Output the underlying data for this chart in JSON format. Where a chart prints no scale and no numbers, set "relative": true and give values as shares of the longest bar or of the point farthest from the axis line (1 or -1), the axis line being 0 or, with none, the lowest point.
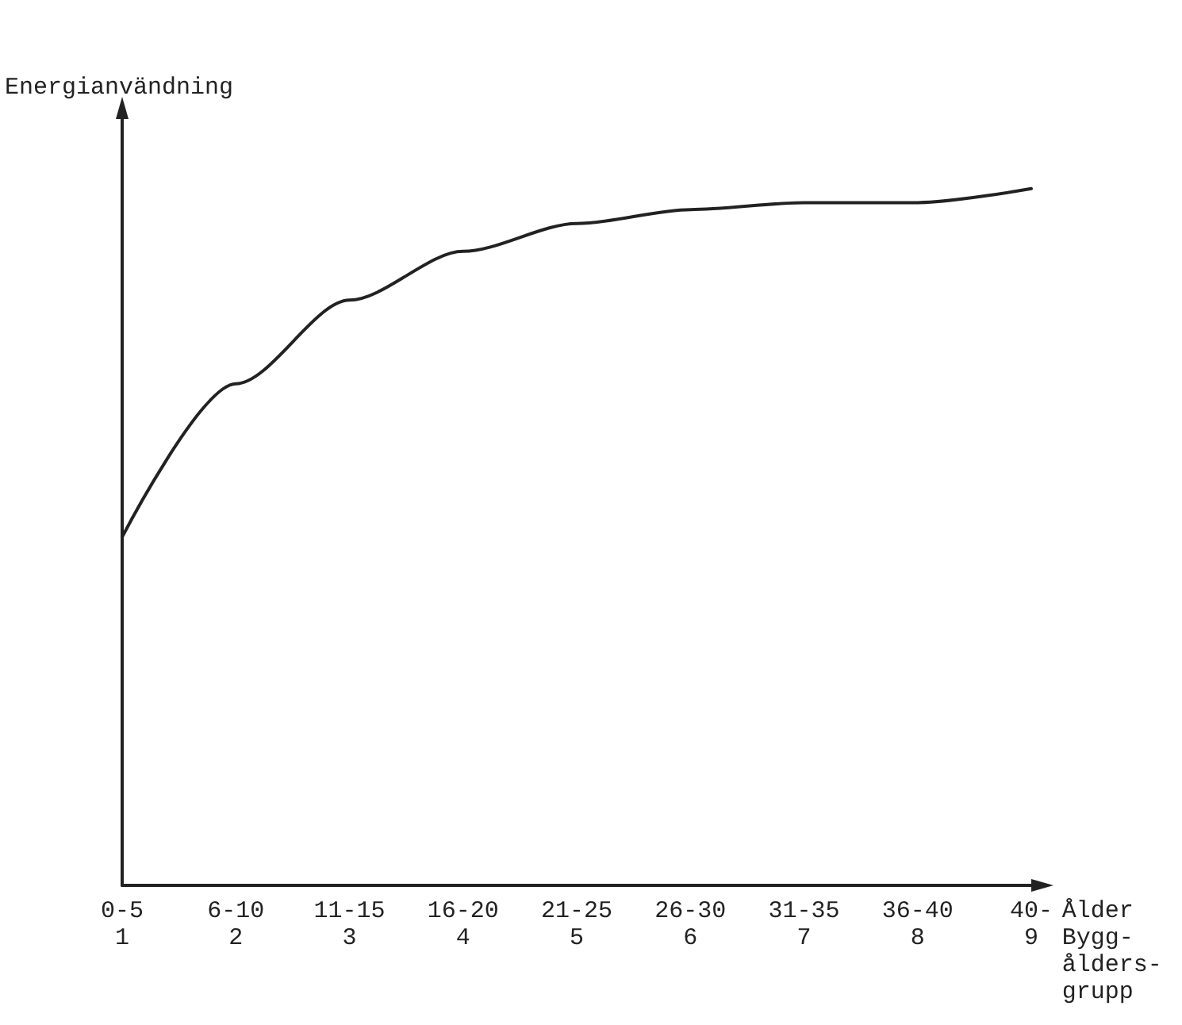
{
  "chart_data": {
    "type": "line",
    "relative": true,
    "ylabel": "Energianvändning",
    "xlabel": "Ålder\nBygg-\nålders-\ngrupp",
    "categories": [
      "0-5\n1",
      "6-10\n2",
      "11-15\n3",
      "16-20\n4",
      "21-25\n5",
      "26-30\n6",
      "31-35\n7",
      "36-40\n8",
      "40-\n9"
    ],
    "series": [
      {
        "color": "#222222",
        "values": [
          0.5,
          0.72,
          0.84,
          0.91,
          0.95,
          0.97,
          0.98,
          0.98,
          1
        ]
      }
    ],
    "marker": "none",
    "line_style": "solid",
    "grid": false
  }
}
